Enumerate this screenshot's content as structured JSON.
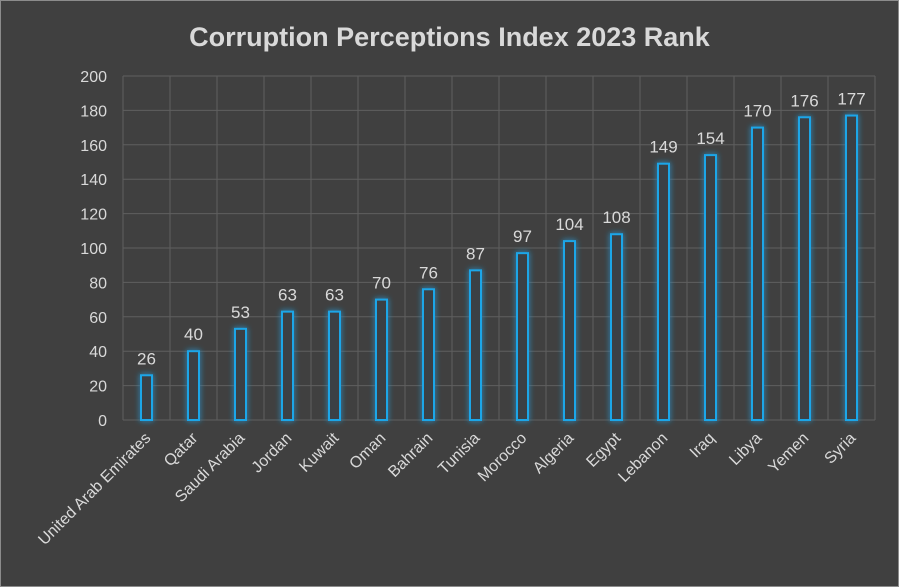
{
  "chart_data": {
    "type": "bar",
    "title": "Corruption Perceptions Index 2023 Rank",
    "xlabel": "",
    "ylabel": "",
    "ylim": [
      0,
      200
    ],
    "yticks": [
      0,
      20,
      40,
      60,
      80,
      100,
      120,
      140,
      160,
      180,
      200
    ],
    "grid": true,
    "legend": "none",
    "categories": [
      "United Arab Emirates",
      "Qatar",
      "Saudi Arabia",
      "Jordan",
      "Kuwait",
      "Oman",
      "Bahrain",
      "Tunisia",
      "Morocco",
      "Algeria",
      "Egypt",
      "Lebanon",
      "Iraq",
      "Libya",
      "Yemen",
      "Syria"
    ],
    "values": [
      26,
      40,
      53,
      63,
      63,
      70,
      76,
      87,
      97,
      104,
      108,
      149,
      154,
      170,
      176,
      177
    ],
    "colors": {
      "background": "#404040",
      "bar_outline": "#1fa6e8",
      "bar_fill": "#3a3f44",
      "glow": "#1a8fd6",
      "grid": "#5f5f5f",
      "text": "#d9d9d9"
    }
  }
}
